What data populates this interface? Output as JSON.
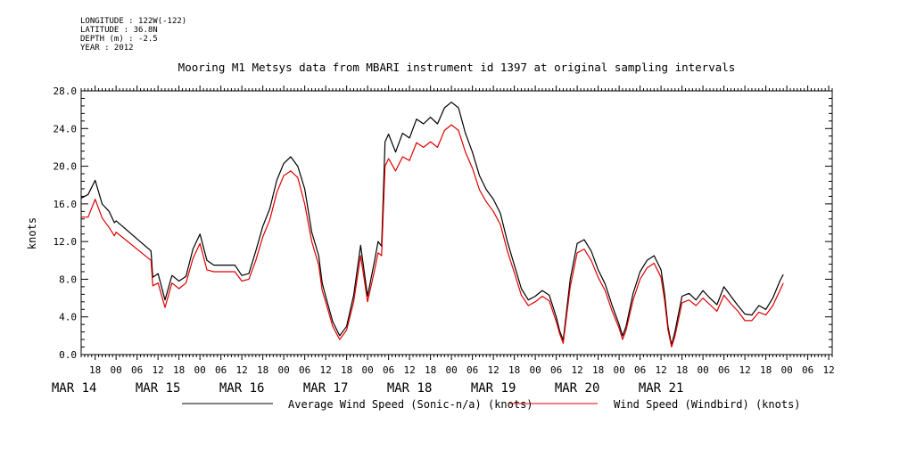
{
  "header": {
    "longitude": "LONGITUDE : 122W(-122)",
    "latitude": "LATITUDE : 36.8N",
    "depth": "DEPTH (m) : -2.5",
    "year": "YEAR : 2012"
  },
  "chart_data": {
    "type": "line",
    "title": "Mooring M1 Metsys data from MBARI instrument id 1397 at original sampling intervals",
    "xlabel": "",
    "ylabel": "knots",
    "ylim": [
      0,
      28
    ],
    "y_ticks": [
      "0.0",
      "4.0",
      "8.0",
      "12.0",
      "16.0",
      "20.0",
      "24.0",
      "28.0"
    ],
    "x_unit": "hours since 2012-03-14 00:00",
    "xlim": [
      14,
      229
    ],
    "hour_tick_labels": [
      "18",
      "00",
      "06",
      "12",
      "18",
      "00",
      "06",
      "12",
      "18",
      "00",
      "06",
      "12",
      "18",
      "00",
      "06",
      "12",
      "18",
      "00",
      "06",
      "12",
      "18",
      "00",
      "06",
      "12",
      "18",
      "00",
      "06",
      "12",
      "18",
      "00",
      "06",
      "12",
      "18",
      "00",
      "06",
      "12"
    ],
    "date_labels": [
      {
        "label": "MAR 14",
        "x": 12
      },
      {
        "label": "MAR 15",
        "x": 36
      },
      {
        "label": "MAR 16",
        "x": 60
      },
      {
        "label": "MAR 17",
        "x": 84
      },
      {
        "label": "MAR 18",
        "x": 108
      },
      {
        "label": "MAR 19",
        "x": 132
      },
      {
        "label": "MAR 20",
        "x": 156
      },
      {
        "label": "MAR 21",
        "x": 180
      }
    ],
    "grid": false,
    "legend": "bottom",
    "series": [
      {
        "name": "Average Wind Speed (Sonic-n/a) (knots)",
        "color": "#000000",
        "points": [
          [
            14,
            16.6
          ],
          [
            16,
            17.0
          ],
          [
            18,
            18.5
          ],
          [
            20,
            16.0
          ],
          [
            22,
            15.2
          ],
          [
            23.5,
            14.0
          ],
          [
            24,
            14.2
          ],
          [
            34,
            11.0
          ],
          [
            34.5,
            8.2
          ],
          [
            36,
            8.6
          ],
          [
            38,
            5.8
          ],
          [
            40,
            8.4
          ],
          [
            42,
            7.8
          ],
          [
            44,
            8.3
          ],
          [
            46,
            11.2
          ],
          [
            48,
            12.8
          ],
          [
            50,
            10.0
          ],
          [
            52,
            9.5
          ],
          [
            54,
            9.5
          ],
          [
            58,
            9.5
          ],
          [
            60,
            8.4
          ],
          [
            62,
            8.6
          ],
          [
            64,
            11.0
          ],
          [
            66,
            13.6
          ],
          [
            68,
            15.5
          ],
          [
            70,
            18.5
          ],
          [
            72,
            20.3
          ],
          [
            74,
            21.0
          ],
          [
            76,
            20.0
          ],
          [
            78,
            17.6
          ],
          [
            80,
            13.0
          ],
          [
            82,
            10.5
          ],
          [
            83,
            7.6
          ],
          [
            84,
            6.2
          ],
          [
            86,
            3.5
          ],
          [
            88,
            2.0
          ],
          [
            90,
            3.0
          ],
          [
            92,
            6.3
          ],
          [
            94,
            11.6
          ],
          [
            96,
            6.2
          ],
          [
            98,
            10.0
          ],
          [
            99,
            12.0
          ],
          [
            100,
            11.5
          ],
          [
            101,
            22.6
          ],
          [
            102,
            23.4
          ],
          [
            104,
            21.5
          ],
          [
            106,
            23.5
          ],
          [
            108,
            23.0
          ],
          [
            110,
            25.0
          ],
          [
            112,
            24.5
          ],
          [
            114,
            25.2
          ],
          [
            116,
            24.5
          ],
          [
            118,
            26.2
          ],
          [
            120,
            26.8
          ],
          [
            122,
            26.2
          ],
          [
            124,
            23.5
          ],
          [
            126,
            21.5
          ],
          [
            128,
            19.0
          ],
          [
            130,
            17.5
          ],
          [
            132,
            16.5
          ],
          [
            134,
            15.0
          ],
          [
            136,
            12.0
          ],
          [
            138,
            9.5
          ],
          [
            140,
            7.0
          ],
          [
            142,
            5.8
          ],
          [
            144,
            6.2
          ],
          [
            146,
            6.8
          ],
          [
            148,
            6.3
          ],
          [
            150,
            4.0
          ],
          [
            151,
            2.5
          ],
          [
            152,
            1.5
          ],
          [
            154,
            8.0
          ],
          [
            156,
            11.8
          ],
          [
            158,
            12.2
          ],
          [
            160,
            11.0
          ],
          [
            162,
            9.0
          ],
          [
            164,
            7.5
          ],
          [
            166,
            5.2
          ],
          [
            168,
            3.2
          ],
          [
            169,
            2.0
          ],
          [
            170,
            3.0
          ],
          [
            172,
            6.5
          ],
          [
            174,
            8.8
          ],
          [
            176,
            10.0
          ],
          [
            178,
            10.5
          ],
          [
            180,
            9.0
          ],
          [
            181,
            6.5
          ],
          [
            182,
            3.0
          ],
          [
            183,
            1.0
          ],
          [
            184,
            2.5
          ],
          [
            186,
            6.2
          ],
          [
            188,
            6.5
          ],
          [
            190,
            5.8
          ],
          [
            192,
            6.8
          ],
          [
            194,
            6.0
          ],
          [
            196,
            5.3
          ],
          [
            198,
            7.2
          ],
          [
            200,
            6.2
          ],
          [
            202,
            5.2
          ],
          [
            204,
            4.3
          ],
          [
            206,
            4.2
          ],
          [
            208,
            5.2
          ],
          [
            210,
            4.8
          ],
          [
            212,
            6.0
          ],
          [
            214,
            7.8
          ],
          [
            215,
            8.5
          ]
        ]
      },
      {
        "name": "Wind Speed (Windbird) (knots)",
        "color": "#e00000",
        "points": [
          [
            14,
            14.6
          ],
          [
            16,
            14.6
          ],
          [
            18,
            16.5
          ],
          [
            20,
            14.5
          ],
          [
            22,
            13.5
          ],
          [
            23.5,
            12.6
          ],
          [
            24,
            13.0
          ],
          [
            34,
            10.0
          ],
          [
            34.5,
            7.3
          ],
          [
            36,
            7.6
          ],
          [
            38,
            5.0
          ],
          [
            40,
            7.6
          ],
          [
            42,
            7.0
          ],
          [
            44,
            7.6
          ],
          [
            46,
            10.2
          ],
          [
            48,
            11.8
          ],
          [
            50,
            9.0
          ],
          [
            52,
            8.8
          ],
          [
            54,
            8.8
          ],
          [
            58,
            8.8
          ],
          [
            60,
            7.8
          ],
          [
            62,
            8.0
          ],
          [
            64,
            10.0
          ],
          [
            66,
            12.5
          ],
          [
            68,
            14.3
          ],
          [
            70,
            17.2
          ],
          [
            72,
            19.0
          ],
          [
            74,
            19.5
          ],
          [
            76,
            18.8
          ],
          [
            78,
            16.0
          ],
          [
            80,
            12.0
          ],
          [
            82,
            9.5
          ],
          [
            83,
            6.8
          ],
          [
            84,
            5.6
          ],
          [
            86,
            3.0
          ],
          [
            88,
            1.6
          ],
          [
            90,
            2.6
          ],
          [
            92,
            5.6
          ],
          [
            94,
            10.5
          ],
          [
            96,
            5.6
          ],
          [
            98,
            9.0
          ],
          [
            99,
            10.8
          ],
          [
            100,
            10.5
          ],
          [
            101,
            20.0
          ],
          [
            102,
            20.8
          ],
          [
            104,
            19.5
          ],
          [
            106,
            21.0
          ],
          [
            108,
            20.6
          ],
          [
            110,
            22.5
          ],
          [
            112,
            22.0
          ],
          [
            114,
            22.6
          ],
          [
            116,
            22.0
          ],
          [
            118,
            23.8
          ],
          [
            120,
            24.4
          ],
          [
            122,
            23.8
          ],
          [
            124,
            21.5
          ],
          [
            126,
            19.8
          ],
          [
            128,
            17.5
          ],
          [
            130,
            16.2
          ],
          [
            132,
            15.2
          ],
          [
            134,
            13.8
          ],
          [
            136,
            11.0
          ],
          [
            138,
            8.7
          ],
          [
            140,
            6.3
          ],
          [
            142,
            5.2
          ],
          [
            144,
            5.6
          ],
          [
            146,
            6.2
          ],
          [
            148,
            5.7
          ],
          [
            150,
            3.5
          ],
          [
            151,
            2.2
          ],
          [
            152,
            1.2
          ],
          [
            154,
            7.2
          ],
          [
            156,
            10.8
          ],
          [
            158,
            11.2
          ],
          [
            160,
            10.0
          ],
          [
            162,
            8.2
          ],
          [
            164,
            6.8
          ],
          [
            166,
            4.6
          ],
          [
            168,
            2.8
          ],
          [
            169,
            1.6
          ],
          [
            170,
            2.6
          ],
          [
            172,
            5.8
          ],
          [
            174,
            8.0
          ],
          [
            176,
            9.2
          ],
          [
            178,
            9.7
          ],
          [
            180,
            8.2
          ],
          [
            181,
            5.8
          ],
          [
            182,
            2.6
          ],
          [
            183,
            0.8
          ],
          [
            184,
            2.0
          ],
          [
            186,
            5.5
          ],
          [
            188,
            5.8
          ],
          [
            190,
            5.2
          ],
          [
            192,
            6.0
          ],
          [
            194,
            5.3
          ],
          [
            196,
            4.6
          ],
          [
            198,
            6.3
          ],
          [
            200,
            5.4
          ],
          [
            202,
            4.6
          ],
          [
            204,
            3.6
          ],
          [
            206,
            3.6
          ],
          [
            208,
            4.5
          ],
          [
            210,
            4.2
          ],
          [
            212,
            5.2
          ],
          [
            214,
            6.8
          ],
          [
            215,
            7.6
          ]
        ]
      }
    ]
  }
}
